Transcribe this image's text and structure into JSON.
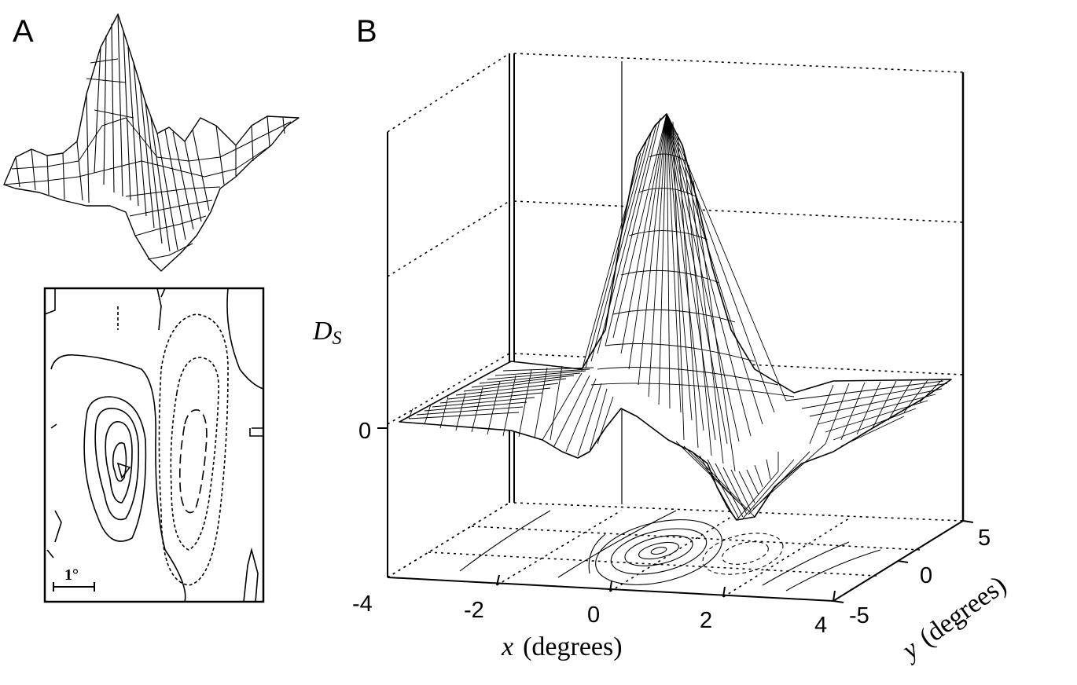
{
  "panels": {
    "a": {
      "label": "A",
      "scale_bar_label": "1°",
      "contour_styles": [
        "solid",
        "dashed"
      ]
    },
    "b": {
      "label": "B",
      "z_label_main": "D",
      "z_label_sub": "S",
      "z_zero_label": "0",
      "x_title_var": "x",
      "x_title_unit": "(degrees)",
      "y_title_var": "y",
      "y_title_unit": "(degrees)"
    }
  },
  "chart_data": {
    "type": "surface",
    "x": {
      "ticks": [
        -4,
        -2,
        0,
        2,
        4
      ],
      "tick_labels": [
        "-4",
        "-2",
        "0",
        "2",
        "4"
      ],
      "range": [
        -4,
        4
      ]
    },
    "y": {
      "ticks": [
        -5,
        0,
        5
      ],
      "tick_labels": [
        "-5",
        "0",
        "5"
      ],
      "range": [
        -5,
        5
      ]
    },
    "z": {
      "ticks": [
        0
      ],
      "tick_labels": [
        "0"
      ]
    },
    "grid": true,
    "contour_projection": true
  }
}
